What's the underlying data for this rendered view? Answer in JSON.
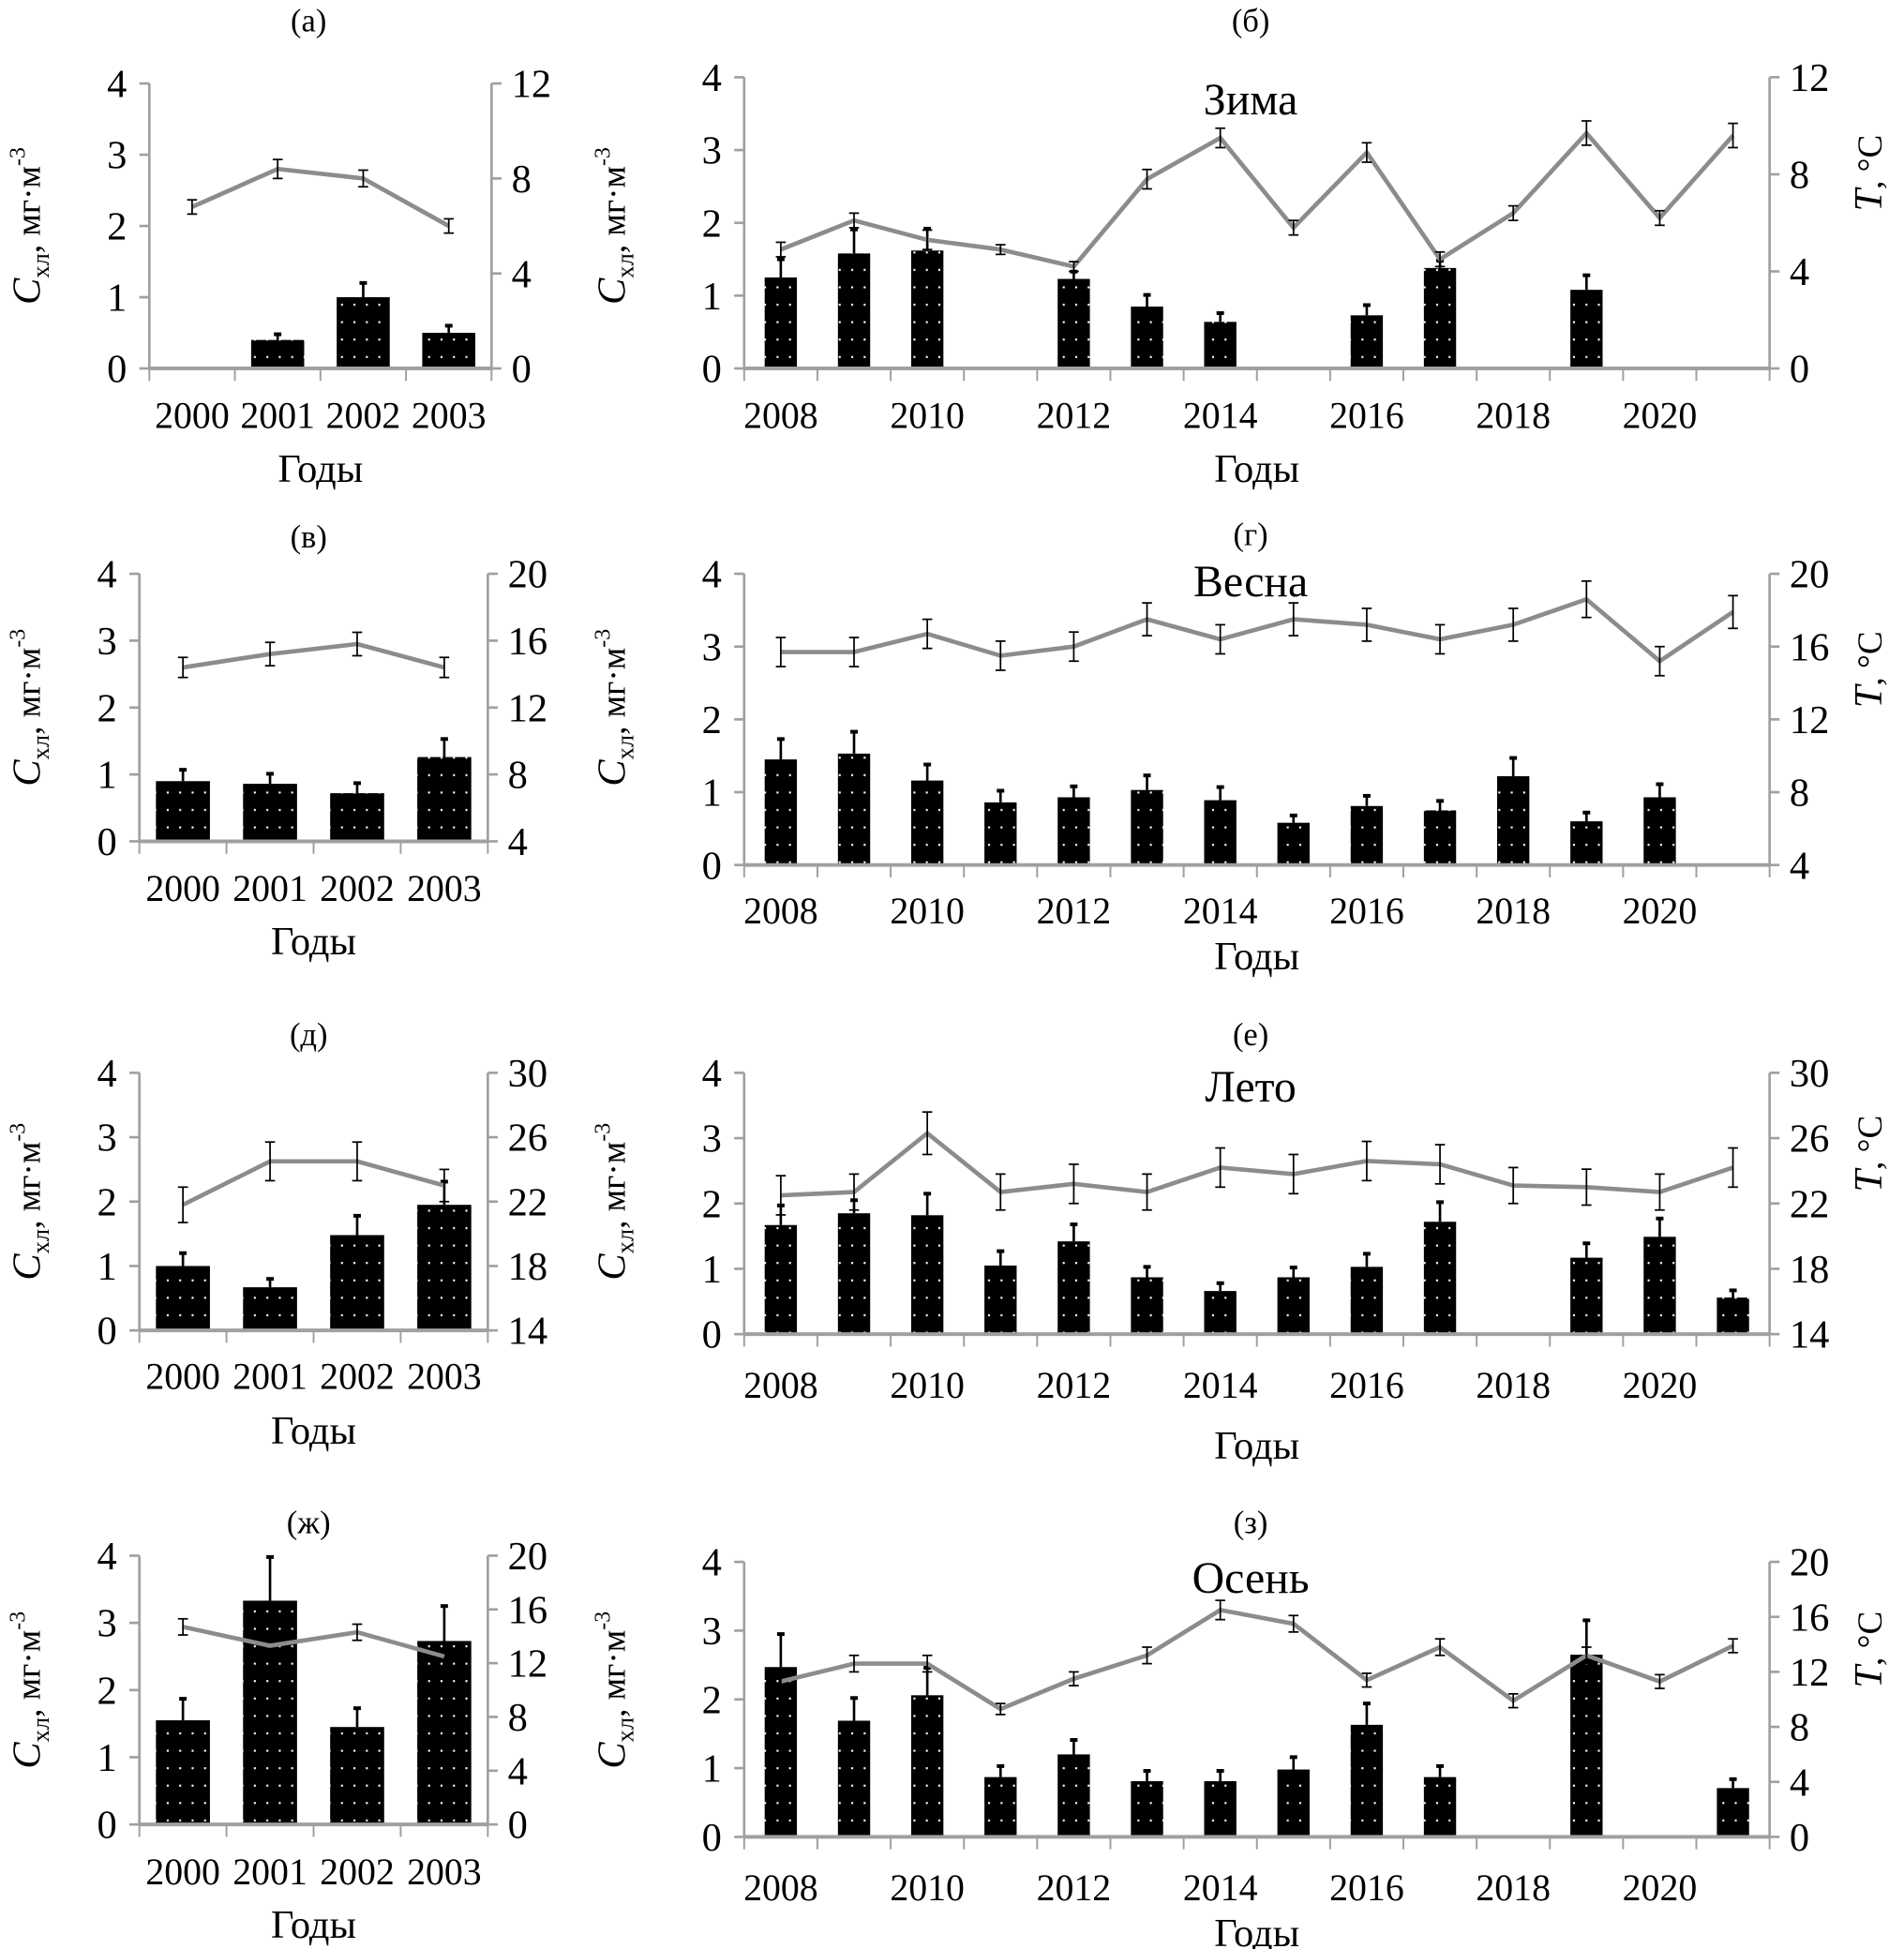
{
  "figure": {
    "x_axis_label": "Годы",
    "chl_axis_label": {
      "symbol": "C",
      "sub": "хл",
      "rest": ", мг·м",
      "sup": "-3"
    },
    "temp_axis_label": {
      "symbol": "T",
      "rest": ", °C"
    },
    "colors": {
      "bars": "#000000",
      "bar_dots": "#ffffff",
      "temperature_line": "#8c8c8c",
      "axes": "#a0a0a0",
      "error_bars": "#000000"
    }
  },
  "chart_data": [
    {
      "panel": "(а)",
      "title": "",
      "type": "bar+line",
      "categories": [
        "2000",
        "2001",
        "2002",
        "2003"
      ],
      "tick_labels": [
        "2000",
        "2001",
        "2002",
        "2003"
      ],
      "left_axis": {
        "ylim": [
          0,
          4
        ],
        "ticks": [
          0,
          1,
          2,
          3,
          4
        ]
      },
      "right_axis": {
        "ylim": [
          0,
          12
        ],
        "ticks": [
          0,
          4,
          8,
          12
        ]
      },
      "chl": [
        null,
        0.4,
        1.0,
        0.5
      ],
      "chl_err": [
        null,
        0.08,
        0.2,
        0.1
      ],
      "temp": [
        6.8,
        8.4,
        8.0,
        6.0
      ],
      "temp_err": [
        0.3,
        0.4,
        0.35,
        0.3
      ]
    },
    {
      "panel": "(б)",
      "title": "Зима",
      "type": "bar+line",
      "categories": [
        "2008",
        "2009",
        "2010",
        "2011",
        "2012",
        "2013",
        "2014",
        "2015",
        "2016",
        "2017",
        "2018",
        "2019",
        "2020",
        "2021"
      ],
      "tick_labels": [
        "2008",
        "",
        "2010",
        "",
        "2012",
        "",
        "2014",
        "",
        "2016",
        "",
        "2018",
        "",
        "2020",
        ""
      ],
      "left_axis": {
        "ylim": [
          0,
          4
        ],
        "ticks": [
          0,
          1,
          2,
          3,
          4
        ]
      },
      "right_axis": {
        "ylim": [
          0,
          12
        ],
        "ticks": [
          0,
          4,
          8,
          12
        ]
      },
      "chl": [
        1.25,
        1.58,
        1.62,
        null,
        1.23,
        0.85,
        0.64,
        null,
        0.73,
        1.38,
        null,
        1.08,
        null,
        null
      ],
      "chl_err": [
        0.25,
        0.33,
        0.3,
        null,
        0.1,
        0.16,
        0.12,
        null,
        0.14,
        0.1,
        null,
        0.2,
        null,
        null
      ],
      "temp": [
        4.9,
        6.1,
        5.3,
        4.9,
        4.2,
        7.8,
        9.5,
        5.8,
        8.9,
        4.5,
        6.4,
        9.7,
        6.2,
        9.6
      ],
      "temp_err": [
        0.3,
        0.3,
        0.4,
        0.2,
        0.2,
        0.4,
        0.4,
        0.3,
        0.4,
        0.3,
        0.3,
        0.5,
        0.3,
        0.5
      ]
    },
    {
      "panel": "(в)",
      "title": "",
      "type": "bar+line",
      "categories": [
        "2000",
        "2001",
        "2002",
        "2003"
      ],
      "tick_labels": [
        "2000",
        "2001",
        "2002",
        "2003"
      ],
      "left_axis": {
        "ylim": [
          0,
          4
        ],
        "ticks": [
          0,
          1,
          2,
          3,
          4
        ]
      },
      "right_axis": {
        "ylim": [
          4,
          20
        ],
        "ticks": [
          4,
          8,
          12,
          16,
          20
        ]
      },
      "chl": [
        0.9,
        0.86,
        0.72,
        1.26
      ],
      "chl_err": [
        0.17,
        0.15,
        0.15,
        0.27
      ],
      "temp": [
        14.4,
        15.2,
        15.8,
        14.4
      ],
      "temp_err": [
        0.6,
        0.7,
        0.7,
        0.6
      ]
    },
    {
      "panel": "(г)",
      "title": "Весна",
      "type": "bar+line",
      "categories": [
        "2008",
        "2009",
        "2010",
        "2011",
        "2012",
        "2013",
        "2014",
        "2015",
        "2016",
        "2017",
        "2018",
        "2019",
        "2020",
        "2021"
      ],
      "tick_labels": [
        "2008",
        "",
        "2010",
        "",
        "2012",
        "",
        "2014",
        "",
        "2016",
        "",
        "2018",
        "",
        "2020",
        ""
      ],
      "left_axis": {
        "ylim": [
          0,
          4
        ],
        "ticks": [
          0,
          1,
          2,
          3,
          4
        ]
      },
      "right_axis": {
        "ylim": [
          4,
          20
        ],
        "ticks": [
          4,
          8,
          12,
          16,
          20
        ]
      },
      "chl": [
        1.45,
        1.53,
        1.16,
        0.86,
        0.93,
        1.03,
        0.89,
        0.58,
        0.81,
        0.75,
        1.22,
        0.6,
        0.93,
        null
      ],
      "chl_err": [
        0.28,
        0.3,
        0.22,
        0.16,
        0.15,
        0.2,
        0.18,
        0.1,
        0.14,
        0.13,
        0.25,
        0.12,
        0.18,
        null
      ],
      "temp": [
        15.7,
        15.7,
        16.7,
        15.5,
        16.0,
        17.5,
        16.4,
        17.5,
        17.2,
        16.4,
        17.2,
        18.6,
        15.2,
        17.9
      ],
      "temp_err": [
        0.8,
        0.8,
        0.8,
        0.8,
        0.8,
        0.9,
        0.8,
        0.9,
        0.9,
        0.8,
        0.9,
        1.0,
        0.8,
        0.9
      ]
    },
    {
      "panel": "(д)",
      "title": "",
      "type": "bar+line",
      "categories": [
        "2000",
        "2001",
        "2002",
        "2003"
      ],
      "tick_labels": [
        "2000",
        "2001",
        "2002",
        "2003"
      ],
      "left_axis": {
        "ylim": [
          0,
          4
        ],
        "ticks": [
          0,
          1,
          2,
          3,
          4
        ]
      },
      "right_axis": {
        "ylim": [
          14,
          30
        ],
        "ticks": [
          14,
          18,
          22,
          26,
          30
        ]
      },
      "chl": [
        1.0,
        0.67,
        1.48,
        1.95
      ],
      "chl_err": [
        0.2,
        0.13,
        0.3,
        0.36
      ],
      "temp": [
        21.8,
        24.5,
        24.5,
        23.0
      ],
      "temp_err": [
        1.1,
        1.2,
        1.2,
        1.0
      ]
    },
    {
      "panel": "(е)",
      "title": "Лето",
      "type": "bar+line",
      "categories": [
        "2008",
        "2009",
        "2010",
        "2011",
        "2012",
        "2013",
        "2014",
        "2015",
        "2016",
        "2017",
        "2018",
        "2019",
        "2020",
        "2021"
      ],
      "tick_labels": [
        "2008",
        "",
        "2010",
        "",
        "2012",
        "",
        "2014",
        "",
        "2016",
        "",
        "2018",
        "",
        "2020",
        ""
      ],
      "left_axis": {
        "ylim": [
          0,
          4
        ],
        "ticks": [
          0,
          1,
          2,
          3,
          4
        ]
      },
      "right_axis": {
        "ylim": [
          14,
          30
        ],
        "ticks": [
          14,
          18,
          22,
          26,
          30
        ]
      },
      "chl": [
        1.67,
        1.85,
        1.82,
        1.05,
        1.42,
        0.87,
        0.66,
        0.87,
        1.03,
        1.72,
        null,
        1.17,
        1.49,
        0.56
      ],
      "chl_err": [
        0.3,
        0.2,
        0.33,
        0.22,
        0.26,
        0.16,
        0.12,
        0.15,
        0.2,
        0.3,
        null,
        0.22,
        0.28,
        0.11
      ],
      "temp": [
        22.5,
        22.7,
        26.3,
        22.7,
        23.2,
        22.7,
        24.2,
        23.8,
        24.6,
        24.4,
        23.1,
        23.0,
        22.7,
        24.2
      ],
      "temp_err": [
        1.2,
        1.1,
        1.3,
        1.1,
        1.2,
        1.1,
        1.2,
        1.2,
        1.2,
        1.2,
        1.1,
        1.1,
        1.1,
        1.2
      ]
    },
    {
      "panel": "(ж)",
      "title": "",
      "type": "bar+line",
      "categories": [
        "2000",
        "2001",
        "2002",
        "2003"
      ],
      "tick_labels": [
        "2000",
        "2001",
        "2002",
        "2003"
      ],
      "left_axis": {
        "ylim": [
          0,
          4
        ],
        "ticks": [
          0,
          1,
          2,
          3,
          4
        ]
      },
      "right_axis": {
        "ylim": [
          0,
          20
        ],
        "ticks": [
          0,
          4,
          8,
          12,
          16,
          20
        ]
      },
      "chl": [
        1.55,
        3.33,
        1.45,
        2.73
      ],
      "chl_err": [
        0.32,
        0.65,
        0.28,
        0.52
      ],
      "temp": [
        14.7,
        13.3,
        14.3,
        12.5
      ],
      "temp_err": [
        0.6,
        null,
        0.6,
        null
      ]
    },
    {
      "panel": "(з)",
      "title": "Осень",
      "type": "bar+line",
      "categories": [
        "2008",
        "2009",
        "2010",
        "2011",
        "2012",
        "2013",
        "2014",
        "2015",
        "2016",
        "2017",
        "2018",
        "2019",
        "2020",
        "2021"
      ],
      "tick_labels": [
        "2008",
        "",
        "2010",
        "",
        "2012",
        "",
        "2014",
        "",
        "2016",
        "",
        "2018",
        "",
        "2020",
        ""
      ],
      "left_axis": {
        "ylim": [
          0,
          4
        ],
        "ticks": [
          0,
          1,
          2,
          3,
          4
        ]
      },
      "right_axis": {
        "ylim": [
          0,
          20
        ],
        "ticks": [
          0,
          4,
          8,
          12,
          16,
          20
        ]
      },
      "chl": [
        2.47,
        1.69,
        2.06,
        0.87,
        1.2,
        0.81,
        0.81,
        0.98,
        1.63,
        0.87,
        null,
        2.65,
        null,
        0.71
      ],
      "chl_err": [
        0.48,
        0.33,
        0.4,
        0.16,
        0.21,
        0.15,
        0.15,
        0.18,
        0.31,
        0.16,
        null,
        0.5,
        null,
        0.13
      ],
      "temp": [
        11.3,
        12.6,
        12.6,
        9.3,
        11.5,
        13.2,
        16.5,
        15.5,
        11.4,
        13.8,
        9.9,
        13.2,
        11.3,
        13.9
      ],
      "temp_err": [
        0.6,
        0.6,
        0.6,
        0.4,
        0.5,
        0.6,
        0.7,
        0.6,
        0.5,
        0.6,
        0.5,
        0.6,
        0.5,
        0.5
      ]
    }
  ]
}
